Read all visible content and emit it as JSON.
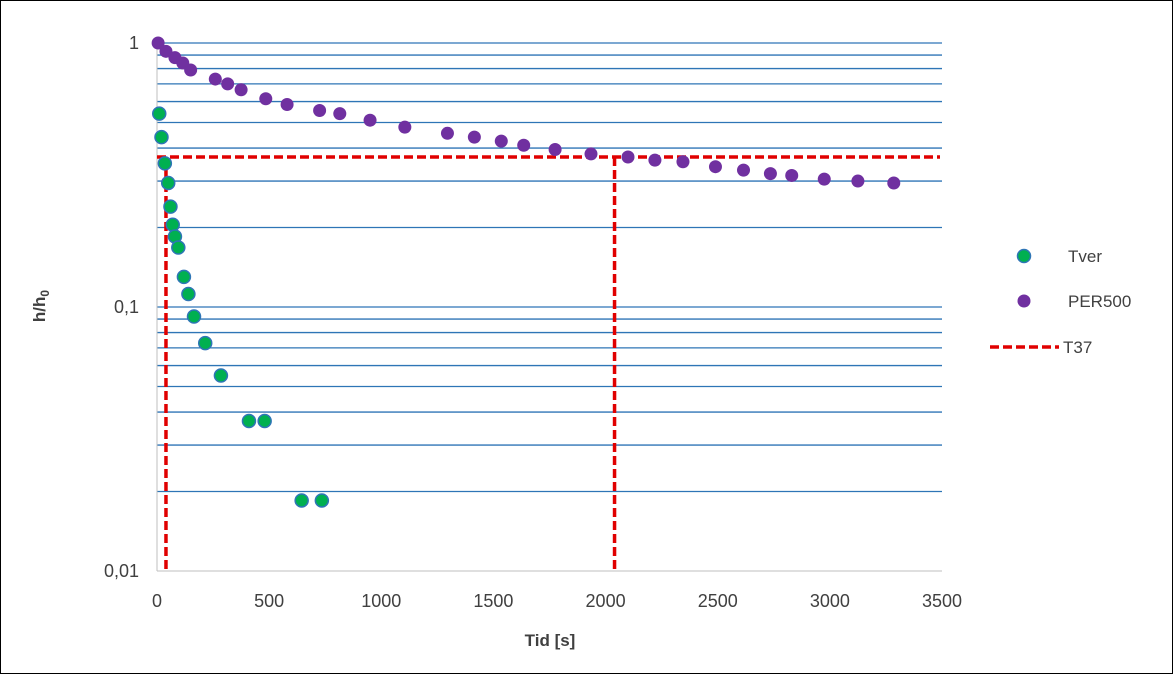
{
  "chart_data": {
    "type": "scatter",
    "title": "",
    "xlabel": "Tid [s]",
    "ylabel": "h/h",
    "ylabel_subscript": "0",
    "x_scale": "linear",
    "y_scale": "log",
    "xlim": [
      0,
      3500
    ],
    "ylim": [
      0.01,
      1
    ],
    "x_ticks": [
      0,
      500,
      1000,
      1500,
      2000,
      2500,
      3000,
      3500
    ],
    "x_tick_labels": [
      "0",
      "500",
      "1000",
      "1500",
      "2000",
      "2500",
      "3000",
      "3500"
    ],
    "y_ticks": [
      0.01,
      0.1,
      1
    ],
    "y_tick_labels": [
      "0,01",
      "0,1",
      "1"
    ],
    "grid": "horizontal minor and major lines",
    "legend_position": "right",
    "colors": {
      "grid": "#2e75b6",
      "tver_fill": "#00b050",
      "tver_edge": "#2e75b6",
      "per500": "#7030a0",
      "t37": "#e00000"
    },
    "series": [
      {
        "name": "Tver",
        "kind": "markers",
        "x": [
          10,
          20,
          35,
          50,
          60,
          70,
          80,
          95,
          120,
          140,
          165,
          215,
          285,
          410,
          480,
          645,
          735
        ],
        "y": [
          0.54,
          0.44,
          0.35,
          0.295,
          0.24,
          0.205,
          0.185,
          0.168,
          0.13,
          0.112,
          0.092,
          0.073,
          0.055,
          0.037,
          0.037,
          0.0185,
          0.0185
        ]
      },
      {
        "name": "PER500",
        "kind": "markers",
        "x": [
          5,
          40,
          80,
          115,
          150,
          260,
          315,
          375,
          485,
          580,
          725,
          815,
          950,
          1105,
          1295,
          1415,
          1535,
          1635,
          1775,
          1935,
          2100,
          2220,
          2345,
          2490,
          2615,
          2735,
          2830,
          2975,
          3125,
          3285
        ],
        "y": [
          1.0,
          0.93,
          0.88,
          0.84,
          0.79,
          0.73,
          0.7,
          0.665,
          0.615,
          0.585,
          0.555,
          0.54,
          0.51,
          0.48,
          0.455,
          0.44,
          0.425,
          0.41,
          0.395,
          0.38,
          0.37,
          0.36,
          0.355,
          0.34,
          0.33,
          0.32,
          0.315,
          0.305,
          0.3,
          0.295
        ]
      },
      {
        "name": "T37",
        "kind": "dashed-lines",
        "value": 0.37,
        "x": [
          40,
          2040
        ]
      }
    ]
  }
}
